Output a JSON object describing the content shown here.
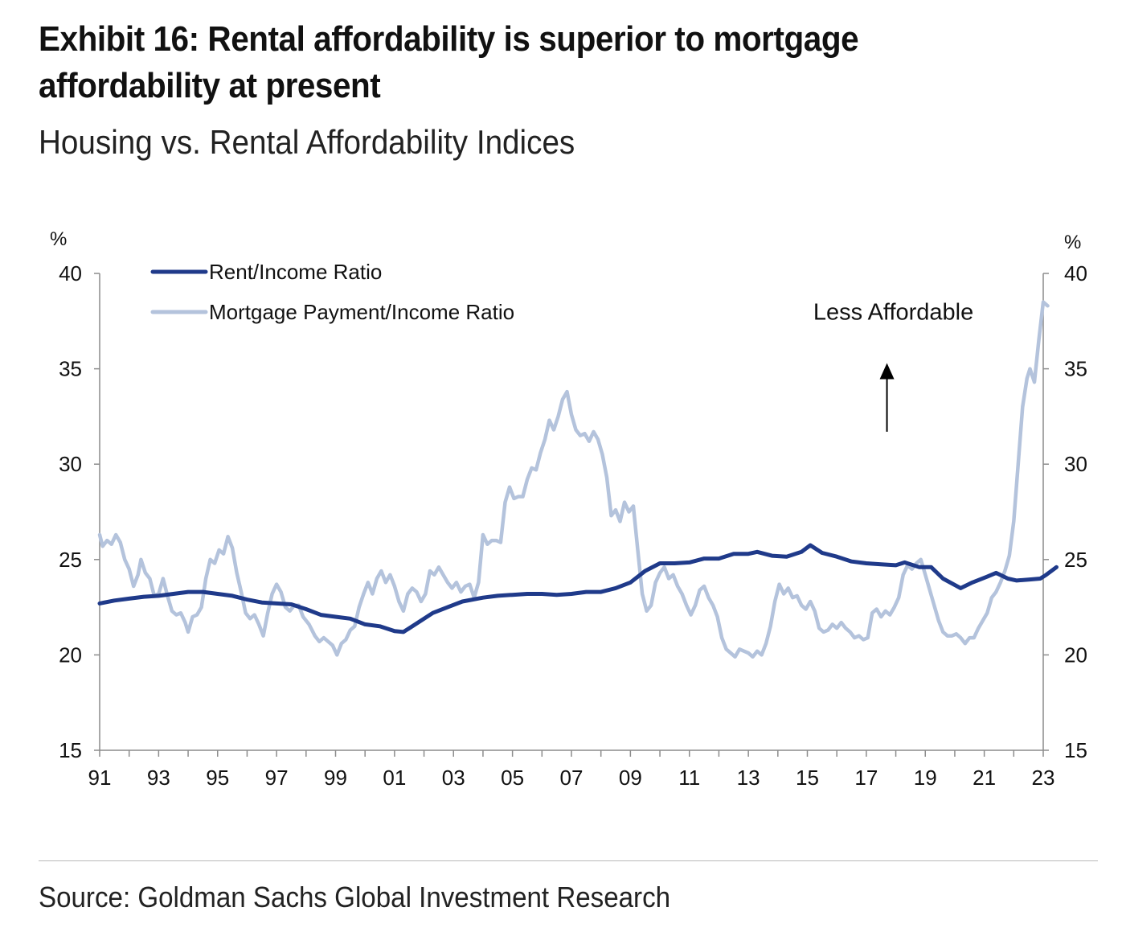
{
  "header": {
    "title": "Exhibit 16: Rental affordability is superior to mortgage affordability at present",
    "subtitle": "Housing vs. Rental Affordability Indices"
  },
  "footer": {
    "source": "Source: Goldman Sachs Global Investment Research"
  },
  "colors": {
    "rent": "#1f3a8a",
    "mortgage": "#b4c3dc",
    "axis": "#8c8c8c",
    "text": "#111111"
  },
  "chart_data": {
    "type": "line",
    "title": "Exhibit 16: Rental affordability is superior to mortgage affordability at present",
    "subtitle": "Housing vs. Rental Affordability Indices",
    "y_unit_left": "%",
    "y_unit_right": "%",
    "ylim": [
      15,
      40
    ],
    "yticks": [
      15,
      20,
      25,
      30,
      35,
      40
    ],
    "xlim": [
      1991,
      2023
    ],
    "xtick_labels": [
      "91",
      "93",
      "95",
      "97",
      "99",
      "01",
      "03",
      "05",
      "07",
      "09",
      "11",
      "13",
      "15",
      "17",
      "19",
      "21",
      "23"
    ],
    "grid": false,
    "legend_position": "top-left",
    "annotation": {
      "text": "Less Affordable",
      "arrow": "up",
      "x": 2017.7,
      "y_text": 38.0,
      "y_arrow_from": 31.7,
      "y_arrow_to": 35.3
    },
    "series": [
      {
        "name": "Rent/Income Ratio",
        "color": "#1f3a8a",
        "points": [
          [
            1991.0,
            22.7
          ],
          [
            1991.5,
            22.85
          ],
          [
            1992.0,
            22.95
          ],
          [
            1992.5,
            23.05
          ],
          [
            1993.0,
            23.1
          ],
          [
            1993.5,
            23.2
          ],
          [
            1994.0,
            23.3
          ],
          [
            1994.5,
            23.3
          ],
          [
            1995.0,
            23.2
          ],
          [
            1995.5,
            23.1
          ],
          [
            1996.0,
            22.9
          ],
          [
            1996.5,
            22.75
          ],
          [
            1997.0,
            22.7
          ],
          [
            1997.5,
            22.65
          ],
          [
            1998.0,
            22.4
          ],
          [
            1998.5,
            22.1
          ],
          [
            1999.0,
            22.0
          ],
          [
            1999.5,
            21.9
          ],
          [
            2000.0,
            21.6
          ],
          [
            2000.5,
            21.5
          ],
          [
            2001.0,
            21.25
          ],
          [
            2001.3,
            21.2
          ],
          [
            2001.8,
            21.7
          ],
          [
            2002.3,
            22.2
          ],
          [
            2002.8,
            22.5
          ],
          [
            2003.3,
            22.8
          ],
          [
            2004.0,
            23.0
          ],
          [
            2004.5,
            23.1
          ],
          [
            2005.0,
            23.15
          ],
          [
            2005.5,
            23.2
          ],
          [
            2006.0,
            23.2
          ],
          [
            2006.5,
            23.15
          ],
          [
            2007.0,
            23.2
          ],
          [
            2007.5,
            23.3
          ],
          [
            2008.0,
            23.3
          ],
          [
            2008.5,
            23.5
          ],
          [
            2009.0,
            23.8
          ],
          [
            2009.5,
            24.4
          ],
          [
            2010.0,
            24.8
          ],
          [
            2010.5,
            24.8
          ],
          [
            2011.0,
            24.85
          ],
          [
            2011.5,
            25.05
          ],
          [
            2012.0,
            25.05
          ],
          [
            2012.5,
            25.3
          ],
          [
            2013.0,
            25.3
          ],
          [
            2013.3,
            25.4
          ],
          [
            2013.8,
            25.2
          ],
          [
            2014.3,
            25.15
          ],
          [
            2014.8,
            25.4
          ],
          [
            2015.1,
            25.75
          ],
          [
            2015.5,
            25.35
          ],
          [
            2016.0,
            25.15
          ],
          [
            2016.5,
            24.9
          ],
          [
            2017.0,
            24.8
          ],
          [
            2017.5,
            24.75
          ],
          [
            2018.0,
            24.7
          ],
          [
            2018.3,
            24.85
          ],
          [
            2018.8,
            24.6
          ],
          [
            2019.2,
            24.6
          ],
          [
            2019.6,
            24.0
          ],
          [
            2020.2,
            23.5
          ],
          [
            2020.6,
            23.8
          ],
          [
            2021.1,
            24.1
          ],
          [
            2021.4,
            24.3
          ],
          [
            2021.8,
            24.0
          ],
          [
            2022.1,
            23.9
          ],
          [
            2022.5,
            23.95
          ],
          [
            2022.9,
            24.0
          ],
          [
            2023.1,
            24.2
          ],
          [
            2023.45,
            24.6
          ]
        ]
      },
      {
        "name": "Mortgage Payment/Income Ratio",
        "color": "#b4c3dc",
        "points": [
          [
            1991.0,
            26.3
          ],
          [
            1991.1,
            25.7
          ],
          [
            1991.25,
            26.0
          ],
          [
            1991.4,
            25.8
          ],
          [
            1991.55,
            26.3
          ],
          [
            1991.7,
            25.9
          ],
          [
            1991.85,
            25.0
          ],
          [
            1992.0,
            24.5
          ],
          [
            1992.15,
            23.6
          ],
          [
            1992.3,
            24.2
          ],
          [
            1992.4,
            25.0
          ],
          [
            1992.55,
            24.3
          ],
          [
            1992.7,
            24.0
          ],
          [
            1992.85,
            23.1
          ],
          [
            1993.0,
            23.2
          ],
          [
            1993.15,
            24.0
          ],
          [
            1993.3,
            23.1
          ],
          [
            1993.45,
            22.3
          ],
          [
            1993.6,
            22.1
          ],
          [
            1993.75,
            22.2
          ],
          [
            1993.9,
            21.7
          ],
          [
            1994.0,
            21.2
          ],
          [
            1994.15,
            22.0
          ],
          [
            1994.3,
            22.1
          ],
          [
            1994.45,
            22.5
          ],
          [
            1994.6,
            24.0
          ],
          [
            1994.75,
            25.0
          ],
          [
            1994.9,
            24.8
          ],
          [
            1995.05,
            25.5
          ],
          [
            1995.2,
            25.3
          ],
          [
            1995.35,
            26.2
          ],
          [
            1995.5,
            25.6
          ],
          [
            1995.65,
            24.3
          ],
          [
            1995.8,
            23.3
          ],
          [
            1995.95,
            22.2
          ],
          [
            1996.1,
            21.9
          ],
          [
            1996.25,
            22.1
          ],
          [
            1996.4,
            21.6
          ],
          [
            1996.55,
            21.0
          ],
          [
            1996.7,
            22.2
          ],
          [
            1996.85,
            23.2
          ],
          [
            1997.0,
            23.7
          ],
          [
            1997.15,
            23.3
          ],
          [
            1997.3,
            22.5
          ],
          [
            1997.45,
            22.3
          ],
          [
            1997.6,
            22.6
          ],
          [
            1997.75,
            22.6
          ],
          [
            1997.9,
            22.0
          ],
          [
            1998.1,
            21.6
          ],
          [
            1998.3,
            21.0
          ],
          [
            1998.45,
            20.7
          ],
          [
            1998.6,
            20.9
          ],
          [
            1998.75,
            20.7
          ],
          [
            1998.9,
            20.5
          ],
          [
            1999.05,
            20.0
          ],
          [
            1999.2,
            20.6
          ],
          [
            1999.35,
            20.8
          ],
          [
            1999.5,
            21.3
          ],
          [
            1999.65,
            21.5
          ],
          [
            1999.8,
            22.5
          ],
          [
            1999.95,
            23.2
          ],
          [
            2000.1,
            23.8
          ],
          [
            2000.25,
            23.2
          ],
          [
            2000.4,
            24.0
          ],
          [
            2000.55,
            24.4
          ],
          [
            2000.7,
            23.8
          ],
          [
            2000.85,
            24.2
          ],
          [
            2001.0,
            23.6
          ],
          [
            2001.15,
            22.8
          ],
          [
            2001.3,
            22.3
          ],
          [
            2001.45,
            23.2
          ],
          [
            2001.6,
            23.5
          ],
          [
            2001.75,
            23.3
          ],
          [
            2001.9,
            22.8
          ],
          [
            2002.05,
            23.2
          ],
          [
            2002.2,
            24.4
          ],
          [
            2002.35,
            24.2
          ],
          [
            2002.5,
            24.6
          ],
          [
            2002.65,
            24.2
          ],
          [
            2002.8,
            23.8
          ],
          [
            2002.95,
            23.5
          ],
          [
            2003.1,
            23.8
          ],
          [
            2003.25,
            23.3
          ],
          [
            2003.4,
            23.6
          ],
          [
            2003.55,
            23.7
          ],
          [
            2003.7,
            23.0
          ],
          [
            2003.85,
            23.8
          ],
          [
            2004.0,
            26.3
          ],
          [
            2004.15,
            25.8
          ],
          [
            2004.3,
            26.0
          ],
          [
            2004.45,
            26.0
          ],
          [
            2004.6,
            25.9
          ],
          [
            2004.75,
            28.0
          ],
          [
            2004.9,
            28.8
          ],
          [
            2005.05,
            28.2
          ],
          [
            2005.2,
            28.3
          ],
          [
            2005.35,
            28.3
          ],
          [
            2005.5,
            29.2
          ],
          [
            2005.65,
            29.8
          ],
          [
            2005.8,
            29.7
          ],
          [
            2005.95,
            30.6
          ],
          [
            2006.1,
            31.3
          ],
          [
            2006.25,
            32.3
          ],
          [
            2006.4,
            31.8
          ],
          [
            2006.55,
            32.5
          ],
          [
            2006.7,
            33.4
          ],
          [
            2006.85,
            33.8
          ],
          [
            2007.0,
            32.6
          ],
          [
            2007.15,
            31.8
          ],
          [
            2007.3,
            31.5
          ],
          [
            2007.45,
            31.6
          ],
          [
            2007.6,
            31.2
          ],
          [
            2007.75,
            31.7
          ],
          [
            2007.9,
            31.3
          ],
          [
            2008.05,
            30.5
          ],
          [
            2008.2,
            29.3
          ],
          [
            2008.35,
            27.3
          ],
          [
            2008.5,
            27.6
          ],
          [
            2008.65,
            27.0
          ],
          [
            2008.8,
            28.0
          ],
          [
            2008.95,
            27.5
          ],
          [
            2009.1,
            27.8
          ],
          [
            2009.25,
            25.5
          ],
          [
            2009.4,
            23.2
          ],
          [
            2009.55,
            22.3
          ],
          [
            2009.7,
            22.6
          ],
          [
            2009.85,
            23.8
          ],
          [
            2010.0,
            24.3
          ],
          [
            2010.15,
            24.6
          ],
          [
            2010.3,
            24.0
          ],
          [
            2010.45,
            24.2
          ],
          [
            2010.6,
            23.6
          ],
          [
            2010.75,
            23.2
          ],
          [
            2010.9,
            22.6
          ],
          [
            2011.05,
            22.1
          ],
          [
            2011.2,
            22.6
          ],
          [
            2011.35,
            23.4
          ],
          [
            2011.5,
            23.6
          ],
          [
            2011.65,
            23.0
          ],
          [
            2011.8,
            22.6
          ],
          [
            2011.95,
            22.0
          ],
          [
            2012.1,
            20.9
          ],
          [
            2012.25,
            20.3
          ],
          [
            2012.4,
            20.1
          ],
          [
            2012.55,
            19.9
          ],
          [
            2012.7,
            20.3
          ],
          [
            2012.85,
            20.2
          ],
          [
            2013.0,
            20.1
          ],
          [
            2013.15,
            19.9
          ],
          [
            2013.3,
            20.2
          ],
          [
            2013.45,
            20.0
          ],
          [
            2013.6,
            20.6
          ],
          [
            2013.75,
            21.5
          ],
          [
            2013.9,
            22.8
          ],
          [
            2014.05,
            23.7
          ],
          [
            2014.2,
            23.2
          ],
          [
            2014.35,
            23.5
          ],
          [
            2014.5,
            23.0
          ],
          [
            2014.65,
            23.1
          ],
          [
            2014.8,
            22.6
          ],
          [
            2014.95,
            22.4
          ],
          [
            2015.1,
            22.8
          ],
          [
            2015.25,
            22.3
          ],
          [
            2015.4,
            21.4
          ],
          [
            2015.55,
            21.2
          ],
          [
            2015.7,
            21.3
          ],
          [
            2015.85,
            21.6
          ],
          [
            2016.0,
            21.4
          ],
          [
            2016.15,
            21.7
          ],
          [
            2016.3,
            21.4
          ],
          [
            2016.45,
            21.2
          ],
          [
            2016.6,
            20.9
          ],
          [
            2016.75,
            21.0
          ],
          [
            2016.9,
            20.8
          ],
          [
            2017.05,
            20.9
          ],
          [
            2017.2,
            22.2
          ],
          [
            2017.35,
            22.4
          ],
          [
            2017.5,
            22.0
          ],
          [
            2017.65,
            22.3
          ],
          [
            2017.8,
            22.1
          ],
          [
            2017.95,
            22.5
          ],
          [
            2018.1,
            23.0
          ],
          [
            2018.25,
            24.2
          ],
          [
            2018.4,
            24.7
          ],
          [
            2018.55,
            24.5
          ],
          [
            2018.7,
            24.8
          ],
          [
            2018.85,
            25.0
          ],
          [
            2019.0,
            24.2
          ],
          [
            2019.15,
            23.4
          ],
          [
            2019.3,
            22.6
          ],
          [
            2019.45,
            21.8
          ],
          [
            2019.6,
            21.2
          ],
          [
            2019.75,
            21.0
          ],
          [
            2019.9,
            21.0
          ],
          [
            2020.05,
            21.1
          ],
          [
            2020.2,
            20.9
          ],
          [
            2020.35,
            20.6
          ],
          [
            2020.5,
            20.9
          ],
          [
            2020.65,
            20.9
          ],
          [
            2020.8,
            21.4
          ],
          [
            2020.95,
            21.8
          ],
          [
            2021.1,
            22.2
          ],
          [
            2021.25,
            23.0
          ],
          [
            2021.4,
            23.3
          ],
          [
            2021.55,
            23.8
          ],
          [
            2021.7,
            24.4
          ],
          [
            2021.85,
            25.2
          ],
          [
            2022.0,
            27.0
          ],
          [
            2022.15,
            30.0
          ],
          [
            2022.3,
            33.0
          ],
          [
            2022.45,
            34.5
          ],
          [
            2022.55,
            35.0
          ],
          [
            2022.7,
            34.3
          ],
          [
            2022.85,
            36.5
          ],
          [
            2023.0,
            38.5
          ],
          [
            2023.15,
            38.3
          ]
        ]
      }
    ]
  }
}
